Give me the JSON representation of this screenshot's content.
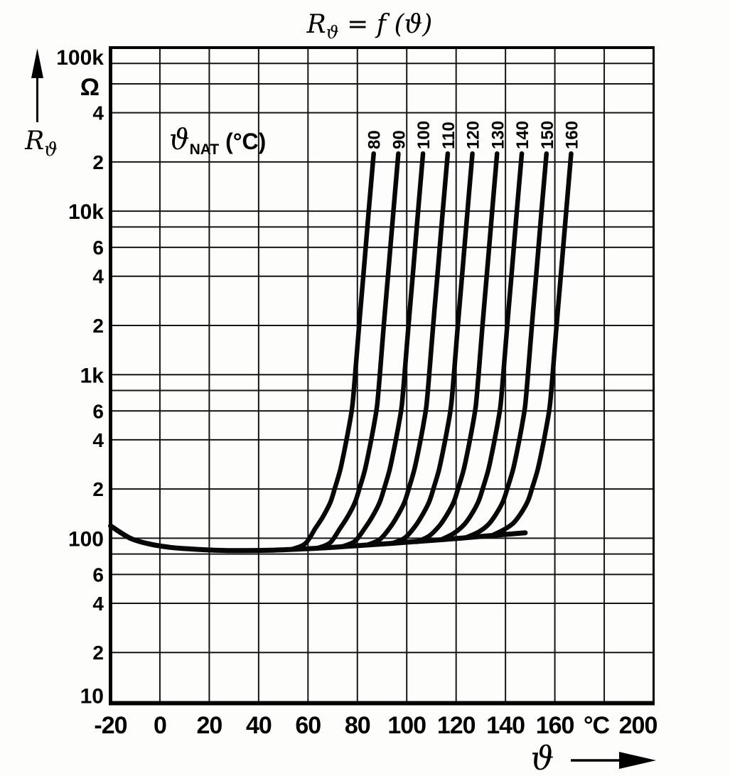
{
  "title": {
    "parts": [
      "R",
      "ϑ",
      " = f (ϑ)"
    ]
  },
  "y_axis": {
    "unit": "Ω",
    "quantity": {
      "parts": [
        "R",
        "ϑ"
      ]
    },
    "ticks": [
      {
        "R": 100000,
        "text": "100k",
        "major": true,
        "dy": 13
      },
      {
        "R": 40000,
        "text": "4"
      },
      {
        "R": 20000,
        "text": "2"
      },
      {
        "R": 10000,
        "text": "10k",
        "major": true
      },
      {
        "R": 6000,
        "text": "6"
      },
      {
        "R": 4000,
        "text": "4"
      },
      {
        "R": 2000,
        "text": "2"
      },
      {
        "R": 1000,
        "text": "1k",
        "major": true
      },
      {
        "R": 600,
        "text": "6"
      },
      {
        "R": 400,
        "text": "4"
      },
      {
        "R": 200,
        "text": "2"
      },
      {
        "R": 100,
        "text": "100",
        "major": true
      },
      {
        "R": 60,
        "text": "6"
      },
      {
        "R": 40,
        "text": "4"
      },
      {
        "R": 20,
        "text": "2"
      },
      {
        "R": 10,
        "text": "10",
        "major": true,
        "dy": -9
      }
    ]
  },
  "x_axis": {
    "label": "ϑ",
    "ticks": [
      {
        "t": -20,
        "text": "-20"
      },
      {
        "t": 0,
        "text": "0"
      },
      {
        "t": 20,
        "text": "20"
      },
      {
        "t": 40,
        "text": "40"
      },
      {
        "t": 60,
        "text": "60"
      },
      {
        "t": 80,
        "text": "80"
      },
      {
        "t": 100,
        "text": "100"
      },
      {
        "t": 120,
        "text": "120"
      },
      {
        "t": 140,
        "text": "140"
      },
      {
        "t": 160,
        "text": "160"
      },
      {
        "t": 180,
        "text": "°C",
        "dx": -11
      },
      {
        "t": 200,
        "text": "200",
        "dx": -22
      }
    ]
  },
  "family_label": {
    "parts": [
      "ϑ",
      "NAT",
      " (°C)"
    ]
  },
  "colors": {
    "ink": "#000000",
    "grid": "#151515",
    "curve": "#070707"
  },
  "chart_data": {
    "type": "line",
    "title": "Rϑ = f(ϑ)",
    "xlabel": "ϑ (°C)",
    "ylabel": "Rϑ (Ω)",
    "x_range": [
      -20,
      200
    ],
    "y_range": [
      10,
      100000
    ],
    "y_scale": "log",
    "x_grid_step": 20,
    "y_gridlines": [
      10,
      20,
      40,
      60,
      80,
      100,
      200,
      400,
      600,
      800,
      1000,
      2000,
      4000,
      6000,
      8000,
      10000,
      20000,
      40000,
      60000,
      80000,
      100000
    ],
    "base_curve": {
      "name": "common-low-temperature-branch",
      "points": [
        [
          -20,
          119
        ],
        [
          -12,
          100
        ],
        [
          -4,
          92
        ],
        [
          4,
          88
        ],
        [
          12,
          86
        ],
        [
          22,
          84.5
        ],
        [
          34,
          84
        ],
        [
          46,
          84.5
        ],
        [
          58,
          86
        ],
        [
          70,
          88
        ],
        [
          82,
          90.5
        ],
        [
          94,
          93
        ],
        [
          106,
          96
        ],
        [
          118,
          99
        ],
        [
          130,
          102.5
        ],
        [
          140,
          105.5
        ],
        [
          148,
          108
        ]
      ]
    },
    "series": [
      {
        "name": "80",
        "nat_c": 80,
        "points": [
          [
            54,
            86
          ],
          [
            59,
            93
          ],
          [
            63,
            115
          ],
          [
            66,
            135
          ],
          [
            69,
            165
          ],
          [
            71,
            205
          ],
          [
            73,
            260
          ],
          [
            74.5,
            330
          ],
          [
            76,
            430
          ],
          [
            77,
            520
          ],
          [
            78,
            650
          ],
          [
            79.1,
            1000
          ],
          [
            80.7,
            2000
          ],
          [
            82.4,
            4000
          ],
          [
            84.6,
            10000
          ],
          [
            86.6,
            22500
          ]
        ]
      },
      {
        "name": "90",
        "nat_c": 90,
        "points": [
          [
            64,
            87
          ],
          [
            69,
            94
          ],
          [
            73,
            115
          ],
          [
            76,
            135
          ],
          [
            79,
            165
          ],
          [
            81,
            205
          ],
          [
            83,
            260
          ],
          [
            84.5,
            330
          ],
          [
            86,
            430
          ],
          [
            87,
            520
          ],
          [
            88,
            650
          ],
          [
            89.1,
            1000
          ],
          [
            90.7,
            2000
          ],
          [
            92.4,
            4000
          ],
          [
            94.6,
            10000
          ],
          [
            96.6,
            22500
          ]
        ]
      },
      {
        "name": "100",
        "nat_c": 100,
        "points": [
          [
            74,
            89
          ],
          [
            79,
            96
          ],
          [
            83,
            115
          ],
          [
            86,
            135
          ],
          [
            89,
            165
          ],
          [
            91,
            205
          ],
          [
            93,
            260
          ],
          [
            94.5,
            330
          ],
          [
            96,
            430
          ],
          [
            97,
            520
          ],
          [
            98,
            650
          ],
          [
            99.1,
            1000
          ],
          [
            100.7,
            2000
          ],
          [
            102.4,
            4000
          ],
          [
            104.6,
            10000
          ],
          [
            106.6,
            22500
          ]
        ]
      },
      {
        "name": "110",
        "nat_c": 110,
        "points": [
          [
            84,
            91
          ],
          [
            89,
            98
          ],
          [
            93,
            115
          ],
          [
            96,
            135
          ],
          [
            99,
            165
          ],
          [
            101,
            205
          ],
          [
            103,
            260
          ],
          [
            104.5,
            330
          ],
          [
            106,
            430
          ],
          [
            107,
            520
          ],
          [
            108,
            650
          ],
          [
            109.1,
            1000
          ],
          [
            110.7,
            2000
          ],
          [
            112.4,
            4000
          ],
          [
            114.6,
            10000
          ],
          [
            116.6,
            22500
          ]
        ]
      },
      {
        "name": "120",
        "nat_c": 120,
        "points": [
          [
            94,
            93
          ],
          [
            99,
            100
          ],
          [
            103,
            116
          ],
          [
            106,
            136
          ],
          [
            109,
            166
          ],
          [
            111,
            205
          ],
          [
            113,
            260
          ],
          [
            114.5,
            330
          ],
          [
            116,
            430
          ],
          [
            117,
            520
          ],
          [
            118,
            650
          ],
          [
            119.1,
            1000
          ],
          [
            120.7,
            2000
          ],
          [
            122.4,
            4000
          ],
          [
            124.6,
            10000
          ],
          [
            126.6,
            22500
          ]
        ]
      },
      {
        "name": "130",
        "nat_c": 130,
        "points": [
          [
            104,
            95
          ],
          [
            109,
            103
          ],
          [
            113,
            118
          ],
          [
            116,
            137
          ],
          [
            119,
            166
          ],
          [
            121,
            206
          ],
          [
            123,
            260
          ],
          [
            124.5,
            330
          ],
          [
            126,
            430
          ],
          [
            127,
            520
          ],
          [
            128,
            650
          ],
          [
            129.1,
            1000
          ],
          [
            130.7,
            2000
          ],
          [
            132.4,
            4000
          ],
          [
            134.6,
            10000
          ],
          [
            136.6,
            22500
          ]
        ]
      },
      {
        "name": "140",
        "nat_c": 140,
        "points": [
          [
            114,
            98
          ],
          [
            119,
            107
          ],
          [
            123,
            120
          ],
          [
            126,
            138
          ],
          [
            129,
            167
          ],
          [
            131,
            206
          ],
          [
            133,
            260
          ],
          [
            134.5,
            330
          ],
          [
            136,
            430
          ],
          [
            137,
            520
          ],
          [
            138,
            650
          ],
          [
            139.1,
            1000
          ],
          [
            140.7,
            2000
          ],
          [
            142.4,
            4000
          ],
          [
            144.6,
            10000
          ],
          [
            146.6,
            22500
          ]
        ]
      },
      {
        "name": "150",
        "nat_c": 150,
        "points": [
          [
            124,
            101
          ],
          [
            129,
            109
          ],
          [
            133,
            121
          ],
          [
            136,
            139
          ],
          [
            139,
            168
          ],
          [
            141,
            207
          ],
          [
            143,
            261
          ],
          [
            144.5,
            330
          ],
          [
            146,
            430
          ],
          [
            147,
            520
          ],
          [
            148,
            650
          ],
          [
            149.1,
            1000
          ],
          [
            150.7,
            2000
          ],
          [
            152.4,
            4000
          ],
          [
            154.6,
            10000
          ],
          [
            156.6,
            22500
          ]
        ]
      },
      {
        "name": "160",
        "nat_c": 160,
        "points": [
          [
            134,
            103
          ],
          [
            139,
            112
          ],
          [
            143,
            123
          ],
          [
            146,
            140
          ],
          [
            149,
            168
          ],
          [
            151,
            207
          ],
          [
            153,
            261
          ],
          [
            154.5,
            330
          ],
          [
            156,
            430
          ],
          [
            157,
            520
          ],
          [
            158,
            650
          ],
          [
            159.1,
            1000
          ],
          [
            160.7,
            2000
          ],
          [
            162.4,
            4000
          ],
          [
            164.6,
            10000
          ],
          [
            166.6,
            22500
          ]
        ]
      }
    ]
  }
}
